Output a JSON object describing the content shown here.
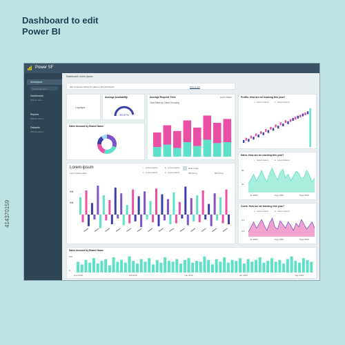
{
  "header": {
    "title_line1": "Dashboard to edit",
    "title_line2": "Power BI"
  },
  "stock_id": "414370159",
  "app": {
    "name": "Power SF"
  },
  "sidebar": {
    "search_placeholder": "Search all items",
    "items": [
      {
        "label": "Workspace"
      },
      {
        "label": "Dashboards"
      },
      {
        "label": "Reports"
      },
      {
        "label": "Datasets"
      }
    ],
    "subitems": [
      "Official sales",
      "Official sales 1",
      "Official sales 2"
    ]
  },
  "main": {
    "breadcrumb": "Dashboard Lorem Ipsum",
    "qa_placeholder": "Ask a question about the data on this dashboard",
    "howto_label": "How to ask",
    "last_week_label": "LAST WEEK",
    "logotype_label": "Logotype"
  },
  "cards": {
    "avg_availability": {
      "title": "Average Availability",
      "value": "99.97%"
    },
    "avg_request_time": {
      "title": "Average Request Time",
      "subtitle": "Total Sales by Client Grouping"
    },
    "sales_brand_pie": {
      "title": "Sales Amount by Brand Name"
    },
    "lorem_main": {
      "title": "Lorem ipsum",
      "subtitle": "Lorem ipsum dolor",
      "legend": [
        "Lorem ipsum",
        "Lorem ipsum",
        "Lorem ipsum",
        "Lorem ipsum",
        "Lorem ipsum",
        "Lorem ipsum"
      ],
      "date_range_label": "Date range",
      "date_from": "06/mm/yy",
      "date_to": "06/mm/yy",
      "y_tick": "XX"
    },
    "profits": {
      "title": "Profits. How are we tracking this year?",
      "legend": [
        "Lorem ipsum",
        "Lorem ipsum"
      ]
    },
    "sales_chart": {
      "title": "Sales. How are we tracking this year?",
      "legend": [
        "Lorem ipsum",
        "Lorem ipsum"
      ],
      "y_ticks": [
        "5K",
        "3K"
      ],
      "x_ticks": [
        "Jul 2020",
        "Aug 2020",
        "Sept 2020"
      ]
    },
    "costs": {
      "title": "Costs. How are we tracking this year?",
      "legend": [
        "Lorem ipsum",
        "Lorem ipsum"
      ],
      "y_ticks": [
        "0.4",
        "0.3"
      ],
      "x_ticks": [
        "Jul 2020",
        "Aug 2020",
        "Sept 2020"
      ]
    },
    "sales_brand_bars": {
      "title": "Sales Amount by Brand Name",
      "y_ticks": [
        "100",
        "0"
      ],
      "x_ticks": [
        "june 2016",
        "feb 2016",
        "mar 2016",
        "abr 2016",
        "may 2016"
      ]
    }
  },
  "colors": {
    "teal": "#5ee0c9",
    "pink": "#e94fa5",
    "navy": "#3b3fa8",
    "purple": "#7d55c7",
    "sidebar": "#2f4553"
  },
  "chart_data": [
    {
      "type": "bar",
      "title": "Average Request Time",
      "series": [
        {
          "values": [
            30,
            40,
            35,
            45,
            38,
            50,
            42,
            48
          ]
        },
        {
          "values": [
            20,
            25,
            18,
            30,
            22,
            35,
            28,
            30
          ]
        }
      ]
    },
    {
      "type": "pie",
      "title": "Sales Amount by Brand Name",
      "values": [
        30,
        25,
        20,
        15,
        10
      ]
    },
    {
      "type": "bar",
      "title": "Lorem ipsum",
      "series": [
        {
          "values": [
            18,
            25,
            12,
            30,
            20,
            15,
            28,
            22,
            10,
            26,
            19,
            24,
            14,
            27,
            21,
            16,
            23,
            13,
            29,
            17,
            20,
            25,
            11,
            22,
            18,
            26
          ]
        },
        {
          "values": [
            -8,
            -12,
            -5,
            -14,
            -6,
            -10,
            -4,
            -11,
            -9,
            -7,
            -13,
            -5,
            -8,
            -12,
            -6,
            -10,
            -9,
            -4,
            -11,
            -7,
            -8,
            -5,
            -12,
            -6,
            -9,
            -10
          ]
        }
      ]
    },
    {
      "type": "bar",
      "title": "Profits. How are we tracking this year?",
      "values": [
        10,
        14,
        12,
        18,
        16,
        22,
        20,
        26,
        24,
        30,
        28,
        34,
        32,
        38,
        36,
        42,
        40,
        46,
        44,
        48,
        50,
        52,
        54,
        56,
        58,
        60,
        62,
        70
      ]
    },
    {
      "type": "area",
      "title": "Sales. How are we tracking this year?",
      "series": [
        {
          "values": [
            3.4,
            3.9,
            4.4,
            3.7,
            4.2,
            4.8,
            4.1,
            3.6,
            4.5,
            5.0,
            4.3,
            3.8,
            4.6,
            4.9,
            4.0,
            4.4,
            3.7,
            4.2,
            4.7,
            4.5,
            3.9,
            4.1,
            4.8,
            4.3,
            3.6,
            4.0
          ]
        }
      ]
    },
    {
      "type": "area",
      "title": "Costs. How are we tracking this year?",
      "series": [
        {
          "values": [
            0.32,
            0.36,
            0.4,
            0.35,
            0.38,
            0.42,
            0.37,
            0.33,
            0.39,
            0.43,
            0.36,
            0.34,
            0.41,
            0.38,
            0.35,
            0.4,
            0.37,
            0.33,
            0.39,
            0.36,
            0.42,
            0.38,
            0.34,
            0.37,
            0.4,
            0.35
          ]
        }
      ]
    },
    {
      "type": "bar",
      "title": "Sales Amount by Brand Name",
      "values": [
        60,
        45,
        70,
        55,
        80,
        50,
        65,
        75,
        40,
        85,
        60,
        70,
        55,
        90,
        65,
        50,
        75,
        60,
        80,
        45,
        70,
        55,
        85,
        65,
        60,
        75,
        50,
        70,
        80,
        55,
        65,
        60,
        90,
        70,
        45,
        75,
        60,
        85,
        55,
        70,
        65,
        80,
        50,
        75,
        60,
        70,
        85,
        55,
        65,
        80,
        60,
        70,
        50,
        75,
        90,
        65,
        55,
        80,
        70,
        60
      ]
    }
  ]
}
